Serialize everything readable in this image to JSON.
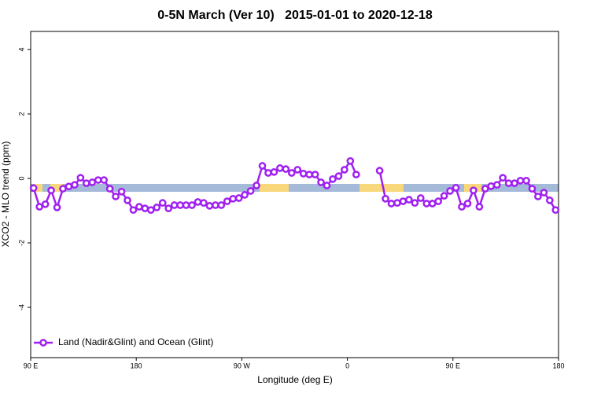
{
  "chart_data": {
    "type": "line",
    "title": "0-5N March (Ver 10)   2015-01-01 to 2020-12-18",
    "x_label": "Longitude (deg E)",
    "y_label": "XCO2 - MLO trend (ppm)",
    "xlim": [
      90,
      540
    ],
    "xticks": [
      {
        "value": 90,
        "label": "90 E"
      },
      {
        "value": 180,
        "label": "180"
      },
      {
        "value": 270,
        "label": "90 W"
      },
      {
        "value": 360,
        "label": "0"
      },
      {
        "value": 450,
        "label": "90 E"
      },
      {
        "value": 540,
        "label": "180"
      }
    ],
    "ylim": [
      -5.56,
      4.56
    ],
    "yticks": [
      -4,
      -2,
      0,
      2,
      4
    ],
    "legend": "bottom-left",
    "x": [
      92.5,
      97.5,
      102.5,
      107.5,
      112.5,
      117.5,
      122.5,
      127.5,
      132.5,
      137.5,
      142.5,
      147.5,
      152.5,
      157.5,
      162.5,
      167.5,
      172.5,
      177.5,
      182.5,
      187.5,
      192.5,
      197.5,
      202.5,
      207.5,
      212.5,
      217.5,
      222.5,
      227.5,
      232.5,
      237.5,
      242.5,
      247.5,
      252.5,
      257.5,
      262.5,
      267.5,
      272.5,
      277.5,
      282.5,
      287.5,
      292.5,
      297.5,
      302.5,
      307.5,
      312.5,
      317.5,
      322.5,
      327.5,
      332.5,
      337.5,
      342.5,
      347.5,
      352.5,
      357.5,
      362.5,
      367.5,
      372.5,
      377.5,
      382.5,
      387.5,
      392.5,
      397.5,
      402.5,
      407.5,
      412.5,
      417.5,
      422.5,
      427.5,
      432.5,
      437.5,
      442.5,
      447.5,
      452.5,
      457.5,
      462.5,
      467.5,
      472.5,
      477.5,
      482.5,
      487.5,
      492.5,
      497.5,
      502.5,
      507.5,
      512.5,
      517.5,
      522.5,
      527.5,
      532.5,
      537.5
    ],
    "series": [
      {
        "name": "Land (Nadir&Glint) and Ocean (Glint)",
        "color": "#a020f0",
        "values": [
          -0.3,
          -0.88,
          -0.8,
          -0.37,
          -0.9,
          -0.32,
          -0.25,
          -0.2,
          0.02,
          -0.15,
          -0.12,
          -0.05,
          -0.05,
          -0.32,
          -0.56,
          -0.41,
          -0.68,
          -0.98,
          -0.88,
          -0.93,
          -0.98,
          -0.9,
          -0.76,
          -0.93,
          -0.83,
          -0.83,
          -0.83,
          -0.83,
          -0.73,
          -0.76,
          -0.85,
          -0.83,
          -0.83,
          -0.71,
          -0.63,
          -0.61,
          -0.51,
          -0.39,
          -0.22,
          0.39,
          0.17,
          0.2,
          0.32,
          0.29,
          0.17,
          0.27,
          0.15,
          0.12,
          0.12,
          -0.12,
          -0.22,
          -0.02,
          0.07,
          0.27,
          0.54,
          0.12,
          null,
          null,
          null,
          0.24,
          -0.63,
          -0.78,
          -0.76,
          -0.71,
          -0.66,
          -0.76,
          -0.61,
          -0.78,
          -0.78,
          -0.71,
          -0.54,
          -0.39,
          -0.29,
          -0.88,
          -0.78,
          -0.37,
          -0.88,
          -0.32,
          -0.24,
          -0.2,
          0.02,
          -0.15,
          -0.15,
          -0.07,
          -0.07,
          -0.32,
          -0.56,
          -0.44,
          -0.68,
          -0.98
        ]
      }
    ]
  }
}
